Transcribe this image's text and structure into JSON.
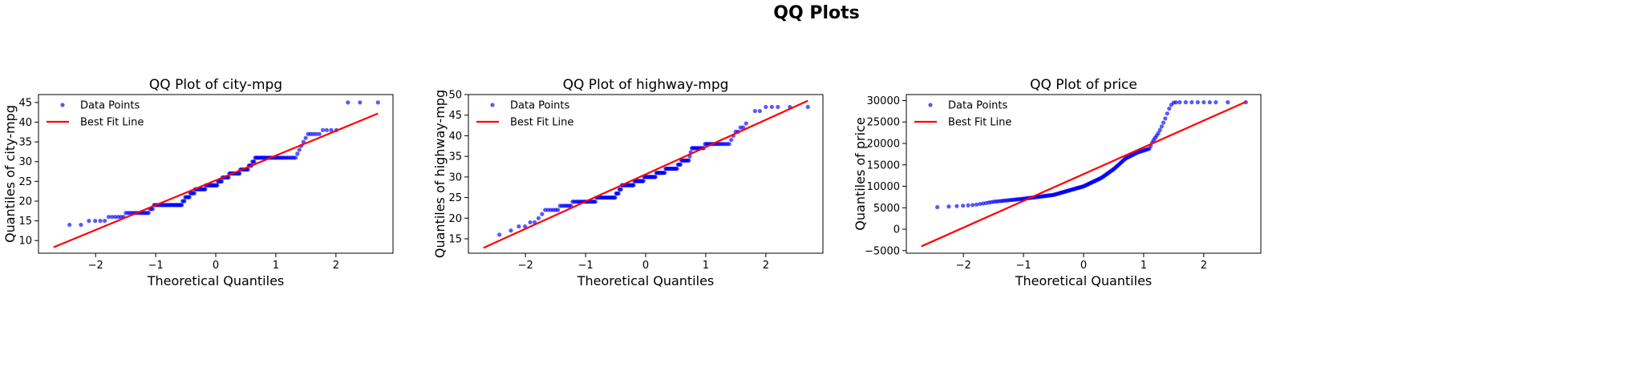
{
  "suptitle": "QQ Plots",
  "colors": {
    "points": "#0000ff",
    "fit_line": "#ff0000"
  },
  "chart_data": [
    {
      "type": "scatter",
      "title": "QQ Plot of city-mpg",
      "xlabel": "Theoretical Quantiles",
      "ylabel": "Quantiles of city-mpg",
      "xlim": [
        -2.95,
        2.95
      ],
      "ylim": [
        6.8,
        47.0
      ],
      "xticks": [
        -2,
        -1,
        0,
        1,
        2
      ],
      "xtick_labels": [
        "−2",
        "−1",
        "0",
        "1",
        "2"
      ],
      "yticks": [
        10,
        15,
        20,
        25,
        30,
        35,
        40,
        45
      ],
      "ytick_labels": [
        "10",
        "15",
        "20",
        "25",
        "30",
        "35",
        "40",
        "45"
      ],
      "legend": {
        "placement": "top-left",
        "entries": [
          "Data Points",
          "Best Fit Line"
        ]
      },
      "fit_line": {
        "x": [
          -2.7,
          2.7
        ],
        "y": [
          8.3,
          42.2
        ]
      },
      "series": [
        {
          "name": "Data Points",
          "knots": [
            [
              -2.7,
              13
            ],
            [
              -2.41,
              14
            ],
            [
              -2.23,
              14
            ],
            [
              -2.1,
              15
            ],
            [
              -1.98,
              15
            ],
            [
              -1.88,
              15
            ],
            [
              -1.8,
              16
            ],
            [
              -1.55,
              16
            ],
            [
              -1.5,
              17
            ],
            [
              -1.12,
              17
            ],
            [
              -1.07,
              18
            ],
            [
              -1.0,
              19
            ],
            [
              -0.58,
              19
            ],
            [
              -0.54,
              20
            ],
            [
              -0.48,
              21
            ],
            [
              -0.38,
              22
            ],
            [
              -0.33,
              23
            ],
            [
              -0.2,
              23
            ],
            [
              -0.15,
              24
            ],
            [
              0.02,
              24
            ],
            [
              0.05,
              25
            ],
            [
              0.15,
              26
            ],
            [
              0.3,
              27
            ],
            [
              0.5,
              28
            ],
            [
              0.58,
              29
            ],
            [
              0.62,
              30
            ],
            [
              0.68,
              31
            ],
            [
              1.32,
              31
            ],
            [
              1.38,
              33
            ],
            [
              1.45,
              35
            ],
            [
              1.5,
              36
            ],
            [
              1.53,
              37
            ],
            [
              1.75,
              37
            ],
            [
              1.8,
              38
            ],
            [
              2.02,
              38
            ],
            [
              2.1,
              38
            ]
          ],
          "extra_points": [
            [
              2.2,
              45
            ],
            [
              2.4,
              45
            ],
            [
              2.7,
              45
            ]
          ]
        }
      ]
    },
    {
      "type": "scatter",
      "title": "QQ Plot of highway-mpg",
      "xlabel": "Theoretical Quantiles",
      "ylabel": "Quantiles of highway-mpg",
      "xlim": [
        -2.95,
        2.95
      ],
      "ylim": [
        11.5,
        50.0
      ],
      "xticks": [
        -2,
        -1,
        0,
        1,
        2
      ],
      "xtick_labels": [
        "−2",
        "−1",
        "0",
        "1",
        "2"
      ],
      "yticks": [
        15,
        20,
        25,
        30,
        35,
        40,
        45,
        50
      ],
      "ytick_labels": [
        "15",
        "20",
        "25",
        "30",
        "35",
        "40",
        "45",
        "50"
      ],
      "legend": {
        "placement": "top-left",
        "entries": [
          "Data Points",
          "Best Fit Line"
        ]
      },
      "fit_line": {
        "x": [
          -2.7,
          2.7
        ],
        "y": [
          12.8,
          48.5
        ]
      },
      "series": [
        {
          "name": "Data Points",
          "knots": [
            [
              -2.7,
              16
            ],
            [
              -2.41,
              16
            ],
            [
              -2.23,
              17
            ],
            [
              -2.1,
              18
            ],
            [
              -1.98,
              18
            ],
            [
              -1.88,
              19
            ],
            [
              -1.8,
              20
            ],
            [
              -1.75,
              20
            ],
            [
              -1.7,
              22
            ],
            [
              -1.5,
              22
            ],
            [
              -1.42,
              23
            ],
            [
              -1.25,
              23
            ],
            [
              -1.2,
              24
            ],
            [
              -0.85,
              24
            ],
            [
              -0.8,
              25
            ],
            [
              -0.52,
              25
            ],
            [
              -0.48,
              26
            ],
            [
              -0.42,
              27
            ],
            [
              -0.38,
              28
            ],
            [
              -0.22,
              28
            ],
            [
              -0.18,
              29
            ],
            [
              -0.05,
              29
            ],
            [
              0.0,
              30
            ],
            [
              0.15,
              30
            ],
            [
              0.2,
              31
            ],
            [
              0.3,
              31
            ],
            [
              0.35,
              32
            ],
            [
              0.5,
              32
            ],
            [
              0.55,
              33
            ],
            [
              0.62,
              34
            ],
            [
              0.72,
              34
            ],
            [
              0.75,
              36
            ],
            [
              0.78,
              37
            ],
            [
              0.95,
              37
            ],
            [
              1.0,
              38
            ],
            [
              1.38,
              38
            ],
            [
              1.42,
              39
            ],
            [
              1.48,
              41
            ],
            [
              1.6,
              42
            ],
            [
              1.72,
              43
            ]
          ],
          "extra_points": [
            [
              1.82,
              46
            ],
            [
              1.9,
              46
            ],
            [
              2.0,
              47
            ],
            [
              2.1,
              47
            ],
            [
              2.2,
              47
            ],
            [
              2.4,
              47
            ],
            [
              2.7,
              47
            ]
          ]
        }
      ]
    },
    {
      "type": "scatter",
      "title": "QQ Plot of price",
      "xlabel": "Theoretical Quantiles",
      "ylabel": "Quantiles of price",
      "xlim": [
        -2.95,
        2.95
      ],
      "ylim": [
        -5600,
        31400
      ],
      "xticks": [
        -2,
        -1,
        0,
        1,
        2
      ],
      "xtick_labels": [
        "−2",
        "−1",
        "0",
        "1",
        "2"
      ],
      "yticks": [
        -5000,
        0,
        5000,
        10000,
        15000,
        20000,
        25000,
        30000
      ],
      "ytick_labels": [
        "−5000",
        "0",
        "5000",
        "10000",
        "15000",
        "20000",
        "25000",
        "30000"
      ],
      "legend": {
        "placement": "top-left",
        "entries": [
          "Data Points",
          "Best Fit Line"
        ]
      },
      "fit_line": {
        "x": [
          -2.7,
          2.7
        ],
        "y": [
          -4000,
          29700
        ]
      },
      "series": [
        {
          "name": "Data Points",
          "knots": [
            [
              -2.7,
              5100
            ],
            [
              -2.41,
              5150
            ],
            [
              -2.23,
              5300
            ],
            [
              -2.1,
              5400
            ],
            [
              -1.98,
              5500
            ],
            [
              -1.88,
              5600
            ],
            [
              -1.8,
              5700
            ],
            [
              -1.5,
              6400
            ],
            [
              -1.0,
              7100
            ],
            [
              -0.5,
              8000
            ],
            [
              0.0,
              10000
            ],
            [
              0.3,
              12000
            ],
            [
              0.5,
              14000
            ],
            [
              0.7,
              16500
            ],
            [
              0.9,
              17900
            ],
            [
              1.1,
              18800
            ],
            [
              1.15,
              20500
            ],
            [
              1.25,
              22500
            ],
            [
              1.35,
              25500
            ],
            [
              1.42,
              28000
            ],
            [
              1.48,
              29500
            ],
            [
              1.55,
              29600
            ]
          ],
          "extra_points": [
            [
              1.6,
              29600
            ],
            [
              1.7,
              29600
            ],
            [
              1.8,
              29600
            ],
            [
              1.9,
              29600
            ],
            [
              2.0,
              29600
            ],
            [
              2.1,
              29600
            ],
            [
              2.2,
              29600
            ],
            [
              2.4,
              29600
            ],
            [
              2.7,
              29600
            ]
          ]
        }
      ]
    }
  ]
}
